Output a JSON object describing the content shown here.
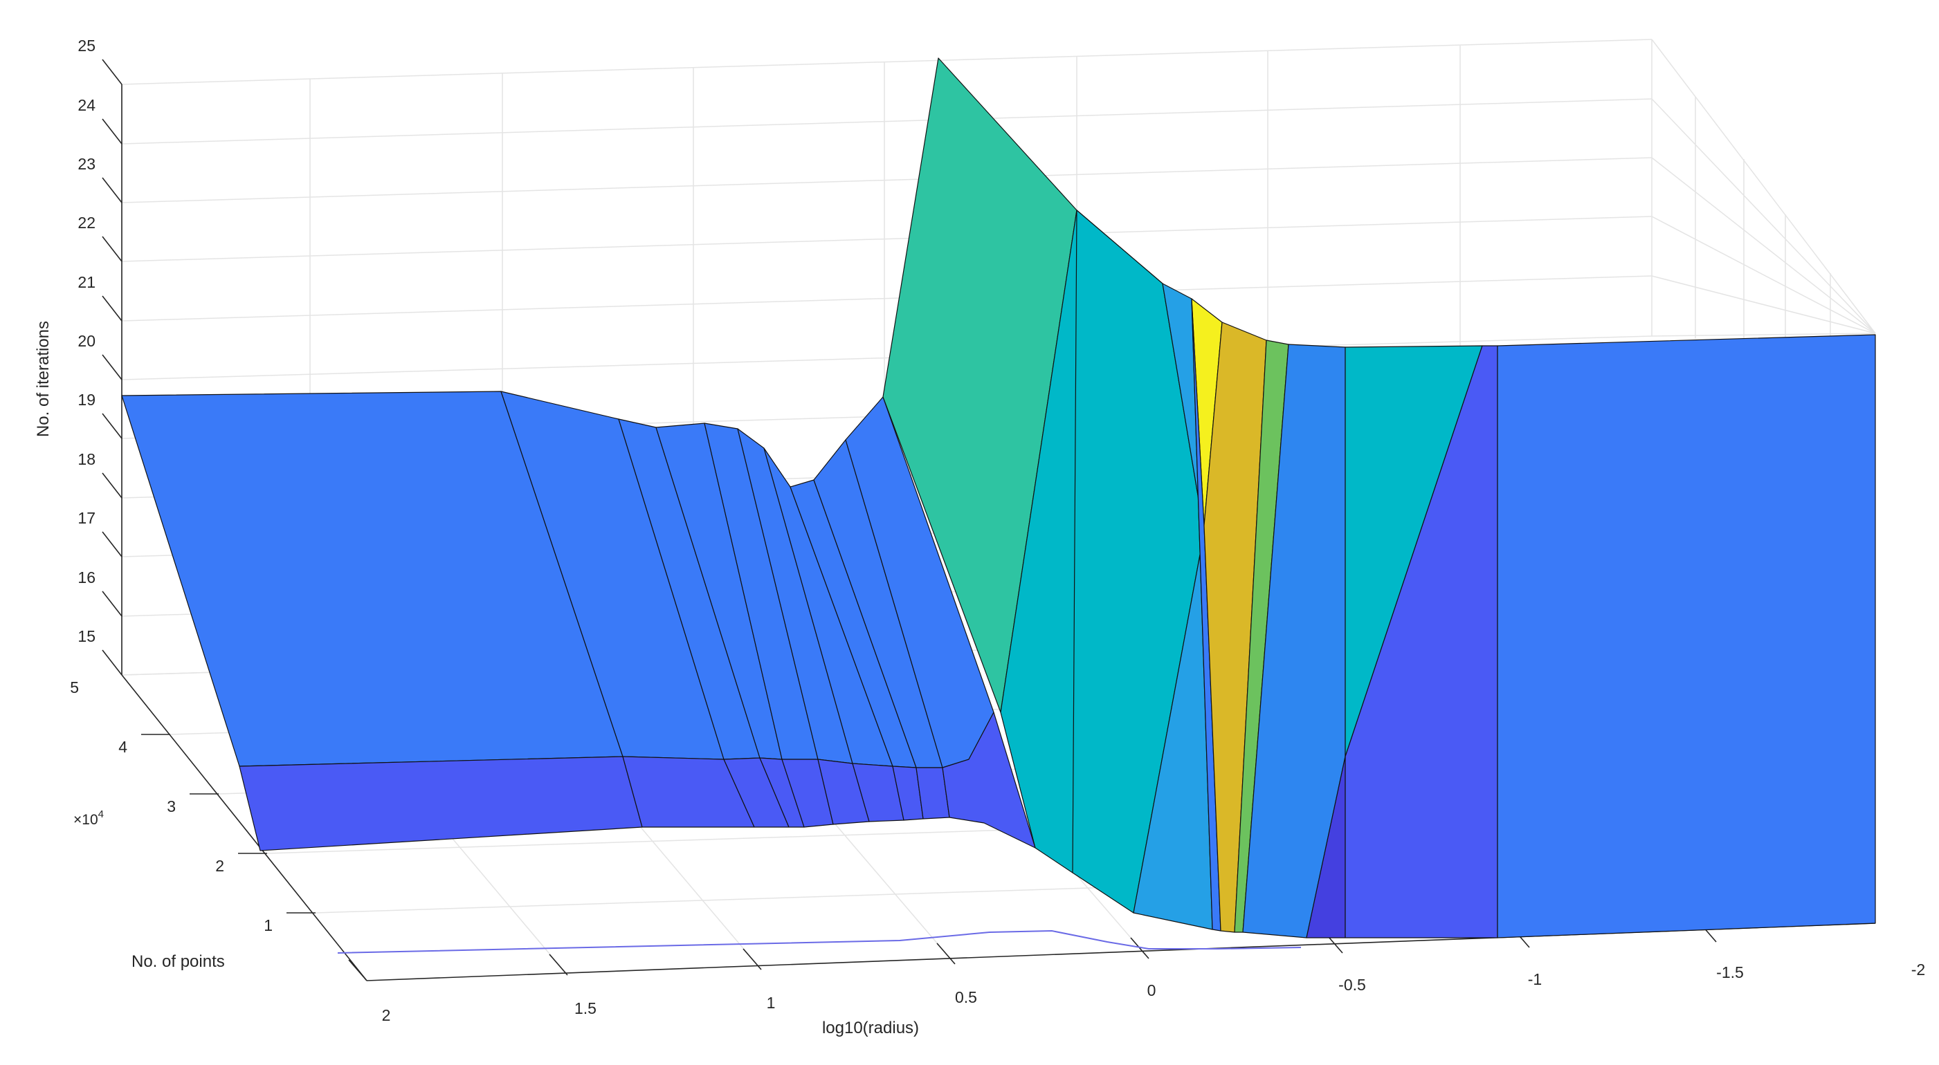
{
  "chart_data": {
    "type": "surface",
    "title": "",
    "xlabel": "log10(radius)",
    "ylabel": "No. of points",
    "zlabel": "No. of iterations",
    "y_exponent_label": "×10",
    "y_exponent_power": "4",
    "x_ticks": [
      "2",
      "1.5",
      "1",
      "0.5",
      "0",
      "-0.5",
      "-1",
      "-1.5",
      "-2"
    ],
    "y_ticks": [
      "1",
      "2",
      "3",
      "4",
      "5"
    ],
    "z_ticks": [
      "15",
      "16",
      "17",
      "18",
      "19",
      "20",
      "21",
      "22",
      "23",
      "24",
      "25"
    ],
    "xlim": [
      2,
      -2
    ],
    "ylim": [
      0,
      50000
    ],
    "zlim": [
      15,
      25
    ],
    "colormap": "parula",
    "grid": true,
    "back_edge_iterations": [
      {
        "log10_radius": 2.0,
        "iterations": 19.0
      },
      {
        "log10_radius": 1.5,
        "iterations": 19.0
      },
      {
        "log10_radius": 1.35,
        "iterations": 18.8
      },
      {
        "log10_radius": 1.25,
        "iterations": 18.7
      },
      {
        "log10_radius": 1.1,
        "iterations": 18.7
      },
      {
        "log10_radius": 1.0,
        "iterations": 18.6
      },
      {
        "log10_radius": 0.9,
        "iterations": 18.0
      },
      {
        "log10_radius": 0.85,
        "iterations": 17.9
      },
      {
        "log10_radius": 0.75,
        "iterations": 18.3
      },
      {
        "log10_radius": 0.65,
        "iterations": 19.0
      },
      {
        "log10_radius": 0.55,
        "iterations": 24.9
      },
      {
        "log10_radius": 0.35,
        "iterations": 22.6
      },
      {
        "log10_radius": 0.2,
        "iterations": 21.2
      },
      {
        "log10_radius": 0.15,
        "iterations": 20.8
      },
      {
        "log10_radius": 0.1,
        "iterations": 20.5
      },
      {
        "log10_radius": 0.05,
        "iterations": 20.3
      },
      {
        "log10_radius": 0.0,
        "iterations": 20.2
      },
      {
        "log10_radius": -0.25,
        "iterations": 20.1
      },
      {
        "log10_radius": -0.5,
        "iterations": 20.1
      },
      {
        "log10_radius": -1.0,
        "iterations": 20.1
      },
      {
        "log10_radius": -2.0,
        "iterations": 20.1
      }
    ]
  }
}
